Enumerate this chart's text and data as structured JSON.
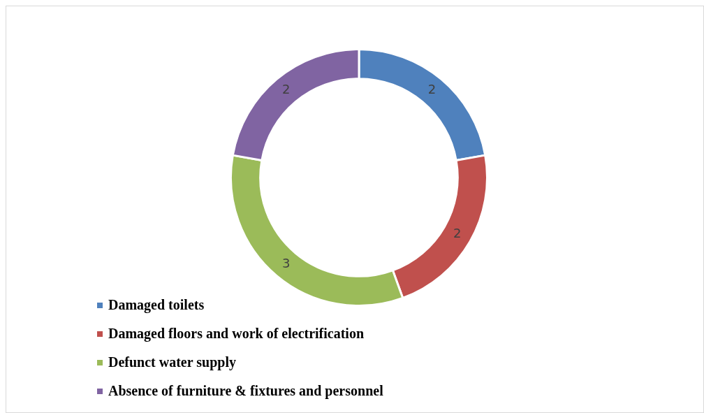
{
  "chart_data": {
    "type": "donut",
    "categories": [
      "Damaged toilets",
      "Damaged floors and work of electrification",
      "Defunct water supply",
      "Absence of furniture & fixtures and personnel"
    ],
    "values": [
      2,
      2,
      3,
      2
    ],
    "colors": [
      "#4f81bd",
      "#c0504d",
      "#9bbb59",
      "#8064a2"
    ],
    "data_labels": true,
    "legend": "bottom left"
  }
}
